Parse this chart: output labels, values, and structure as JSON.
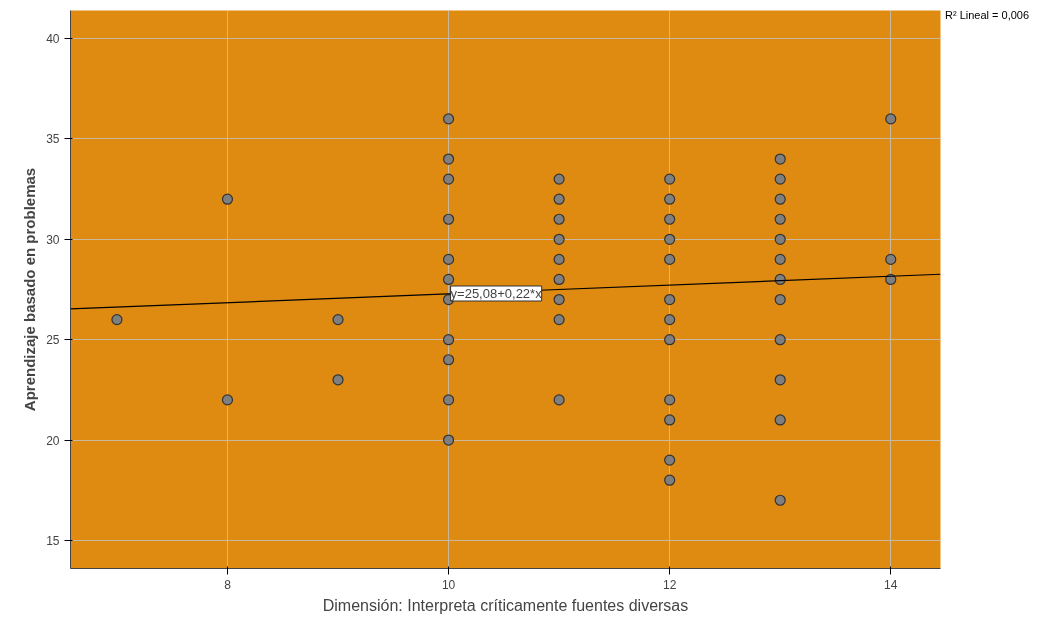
{
  "chart_data": {
    "type": "scatter",
    "xlabel": "Dimensión: Interpreta críticamente fuentes diversas",
    "ylabel": "Aprendizaje basado en problemas",
    "xlim": [
      6.58,
      14.45
    ],
    "xticks": [
      8,
      10,
      12,
      14
    ],
    "ylim": [
      13.6,
      41.4
    ],
    "yticks": [
      15,
      20,
      25,
      30,
      35,
      40
    ],
    "grid": true,
    "series": [
      {
        "marker": "circle",
        "color": "#7f7f7f",
        "x": [
          7,
          8,
          8,
          9,
          9,
          10,
          10,
          10,
          10,
          10,
          10,
          10,
          10,
          10,
          10,
          10,
          11,
          11,
          11,
          11,
          11,
          11,
          11,
          11,
          11,
          12,
          12,
          12,
          12,
          12,
          12,
          12,
          12,
          12,
          12,
          12,
          12,
          13,
          13,
          13,
          13,
          13,
          13,
          13,
          13,
          13,
          13,
          13,
          13,
          14,
          14,
          14
        ],
        "values": [
          26,
          32,
          22,
          26,
          23,
          36,
          34,
          33,
          31,
          29,
          28,
          27,
          25,
          24,
          22,
          20,
          33,
          32,
          31,
          30,
          29,
          28,
          27,
          26,
          22,
          33,
          32,
          31,
          30,
          29,
          27,
          26,
          25,
          22,
          21,
          19,
          18,
          34,
          33,
          32,
          31,
          30,
          29,
          28,
          27,
          25,
          23,
          21,
          17,
          36,
          29,
          28
        ]
      },
      {
        "type": "line",
        "color": "#000000",
        "x": [
          6.58,
          14.45
        ],
        "values": [
          26.53,
          28.26
        ]
      }
    ],
    "annotations": [
      {
        "text": "y=25,08+0,22*x",
        "x": 10,
        "y": 27.3
      },
      "R² Lineal = 0,006"
    ]
  }
}
